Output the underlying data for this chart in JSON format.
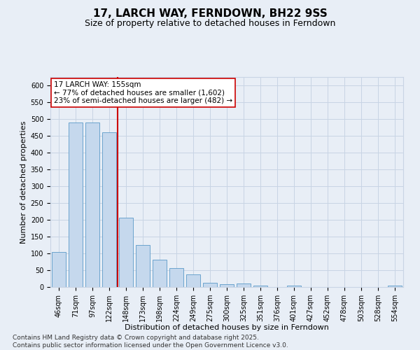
{
  "title_line1": "17, LARCH WAY, FERNDOWN, BH22 9SS",
  "title_line2": "Size of property relative to detached houses in Ferndown",
  "xlabel": "Distribution of detached houses by size in Ferndown",
  "ylabel": "Number of detached properties",
  "categories": [
    "46sqm",
    "71sqm",
    "97sqm",
    "122sqm",
    "148sqm",
    "173sqm",
    "198sqm",
    "224sqm",
    "249sqm",
    "275sqm",
    "300sqm",
    "325sqm",
    "351sqm",
    "376sqm",
    "401sqm",
    "427sqm",
    "452sqm",
    "478sqm",
    "503sqm",
    "528sqm",
    "554sqm"
  ],
  "values": [
    105,
    490,
    490,
    460,
    207,
    124,
    82,
    57,
    38,
    13,
    8,
    11,
    4,
    0,
    5,
    0,
    0,
    0,
    0,
    0,
    5
  ],
  "bar_color": "#c5d8ed",
  "bar_edgecolor": "#5a9ac8",
  "grid_color": "#c8d4e4",
  "bg_color": "#e8eef6",
  "vline_x": 3.5,
  "vline_color": "#cc0000",
  "annotation_text": "17 LARCH WAY: 155sqm\n← 77% of detached houses are smaller (1,602)\n23% of semi-detached houses are larger (482) →",
  "annotation_box_color": "#ffffff",
  "annotation_box_edgecolor": "#cc0000",
  "ylim": [
    0,
    625
  ],
  "yticks": [
    0,
    50,
    100,
    150,
    200,
    250,
    300,
    350,
    400,
    450,
    500,
    550,
    600
  ],
  "footer_text": "Contains HM Land Registry data © Crown copyright and database right 2025.\nContains public sector information licensed under the Open Government Licence v3.0.",
  "title_fontsize": 11,
  "subtitle_fontsize": 9,
  "axis_label_fontsize": 8,
  "tick_fontsize": 7,
  "annotation_fontsize": 7.5,
  "footer_fontsize": 6.5
}
